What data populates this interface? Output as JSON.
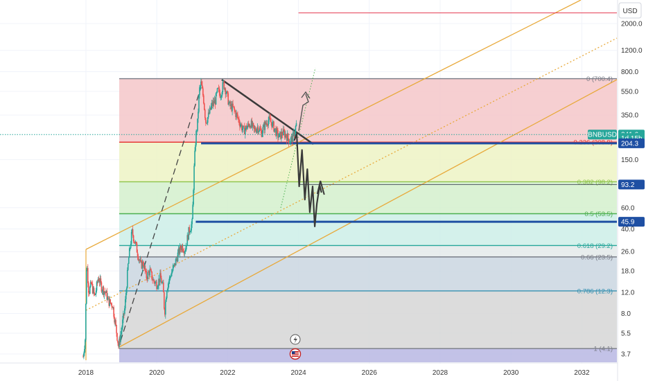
{
  "chart_data": {
    "type": "line",
    "scale": "log",
    "symbol": "BNBUSD",
    "currency": "USD",
    "x_ticks": [
      "2018",
      "2020",
      "2022",
      "2024",
      "2026",
      "2028",
      "2030",
      "2032"
    ],
    "y_ticks": [
      {
        "value": 2000,
        "label": "2000.0"
      },
      {
        "value": 1200,
        "label": "1200.0"
      },
      {
        "value": 800,
        "label": "800.0"
      },
      {
        "value": 550,
        "label": "550.0"
      },
      {
        "value": 350,
        "label": "350.0"
      },
      {
        "value": 150,
        "label": "150.0"
      },
      {
        "value": 60,
        "label": "60.0"
      },
      {
        "value": 40,
        "label": "40.0"
      },
      {
        "value": 26,
        "label": "26.0"
      },
      {
        "value": 18,
        "label": "18.0"
      },
      {
        "value": 12,
        "label": "12.0"
      },
      {
        "value": 8,
        "label": "8.0"
      },
      {
        "value": 5.5,
        "label": "5.5"
      },
      {
        "value": 3.7,
        "label": "3.7"
      }
    ],
    "fib_levels": [
      {
        "ratio": "0",
        "value": 700.4,
        "label": "0 (700.4)",
        "color": "#787b86",
        "zone": "#f4c7c9"
      },
      {
        "ratio": "0.236",
        "value": 208.9,
        "label": "0.236 (208.9)",
        "color": "#e53935",
        "zone": "#edf3c4"
      },
      {
        "ratio": "0.382",
        "value": 98.2,
        "label": "0.382 (98.2)",
        "color": "#8bc34a",
        "zone": "#d3f0cd"
      },
      {
        "ratio": "0.5",
        "value": 53.5,
        "label": "0.5 (53.5)",
        "color": "#4caf50",
        "zone": "#cdefe8"
      },
      {
        "ratio": "0.618",
        "value": 29.2,
        "label": "0.618 (29.2)",
        "color": "#26a69a",
        "zone": "#e4eaea"
      },
      {
        "ratio": "0.66",
        "value": 23.5,
        "label": "0.66 (23.5)",
        "color": "#787b86",
        "zone": "#cad6e0"
      },
      {
        "ratio": "0.786",
        "value": 12.3,
        "label": "0.786 (12.3)",
        "color": "#3590b0",
        "zone": "#d6d6d6"
      },
      {
        "ratio": "1",
        "value": 4.1,
        "label": "1 (4.1)",
        "color": "#787b86",
        "zone": "#b9b7e3"
      }
    ],
    "price_badges": [
      {
        "label": "241.6",
        "value": 241.6,
        "color": "#26a69a"
      },
      {
        "label": "1d 15h",
        "value": 226,
        "color": "#26a69a"
      },
      {
        "label": "204.3",
        "value": 204.3,
        "color": "#1e4fa3"
      },
      {
        "label": "93.2",
        "value": 93.2,
        "color": "#1e4fa3"
      },
      {
        "label": "45.9",
        "value": 45.9,
        "color": "#1e4fa3"
      }
    ],
    "support_lines": [
      {
        "value": 204.3,
        "start": 2021.25
      },
      {
        "value": 45.9,
        "start": 2021.1
      }
    ],
    "resistance_line": {
      "value": 2450,
      "start": 2024.0
    },
    "price_series": {
      "x": [
        2017.92,
        2017.98,
        2018.02,
        2018.08,
        2018.15,
        2018.25,
        2018.35,
        2018.45,
        2018.55,
        2018.65,
        2018.75,
        2018.85,
        2018.92,
        2019.0,
        2019.1,
        2019.2,
        2019.3,
        2019.4,
        2019.48,
        2019.55,
        2019.62,
        2019.7,
        2019.8,
        2019.9,
        2020.0,
        2020.1,
        2020.18,
        2020.22,
        2020.28,
        2020.4,
        2020.5,
        2020.6,
        2020.7,
        2020.8,
        2020.9,
        2021.0,
        2021.05,
        2021.1,
        2021.15,
        2021.2,
        2021.25,
        2021.32,
        2021.38,
        2021.45,
        2021.55,
        2021.65,
        2021.72,
        2021.8,
        2021.88,
        2021.95,
        2022.05,
        2022.15,
        2022.25,
        2022.35,
        2022.45,
        2022.55,
        2022.65,
        2022.75,
        2022.85,
        2022.95,
        2023.05,
        2023.15,
        2023.25,
        2023.35,
        2023.45,
        2023.55,
        2023.65,
        2023.75,
        2023.85,
        2023.95
      ],
      "y": [
        3.5,
        5,
        22,
        12,
        14,
        11,
        16,
        13,
        12,
        10,
        9.5,
        6,
        4.3,
        5.8,
        9,
        22,
        38,
        30,
        24,
        20,
        21,
        16,
        18,
        15,
        14,
        16,
        13,
        8,
        13,
        17,
        20,
        25,
        29,
        27,
        38,
        45,
        120,
        230,
        300,
        560,
        640,
        480,
        310,
        340,
        420,
        460,
        560,
        520,
        640,
        560,
        420,
        400,
        350,
        300,
        260,
        280,
        300,
        260,
        280,
        250,
        290,
        320,
        300,
        260,
        230,
        250,
        240,
        215,
        230,
        300
      ]
    },
    "projection_path": {
      "x": [
        2023.88,
        2023.95,
        2024.02,
        2024.1,
        2024.18,
        2024.25,
        2024.32,
        2024.4,
        2024.46,
        2024.52,
        2024.6,
        2024.65
      ],
      "y": [
        215,
        245,
        90,
        180,
        70,
        125,
        55,
        90,
        42,
        65,
        92,
        80
      ]
    }
  }
}
